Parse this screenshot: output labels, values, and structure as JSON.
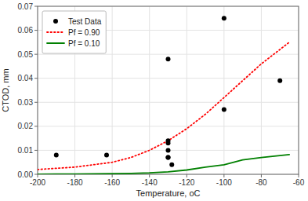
{
  "chart_data": {
    "type": "scatter",
    "xlabel": "Temperature, oC",
    "ylabel": "CTOD, mm",
    "xlim": [
      -200,
      -60
    ],
    "ylim": [
      0,
      0.07
    ],
    "xticks": [
      -200,
      -180,
      -160,
      -140,
      -120,
      -100,
      -80,
      -60
    ],
    "yticks": [
      {
        "value": 0,
        "label": "0.00"
      },
      0.01,
      0.02,
      0.03,
      0.04,
      0.05,
      0.06,
      0.07
    ],
    "grid": true,
    "legend": "upper-left",
    "series": [
      {
        "name": "Test Data",
        "type": "scatter",
        "color": "black",
        "marker": "circle",
        "x": [
          -190,
          -163,
          -130,
          -130,
          -130,
          -130,
          -130,
          -130,
          -128,
          -100,
          -100,
          -70
        ],
        "values": [
          0.008,
          0.008,
          0.048,
          0.014,
          0.013,
          0.01,
          0.007,
          0.007,
          0.004,
          0.065,
          0.027,
          0.039
        ]
      },
      {
        "name": "Pf = 0.90",
        "type": "line",
        "color": "red",
        "line_style": "dotted",
        "x": [
          -200,
          -190,
          -180,
          -170,
          -160,
          -150,
          -140,
          -130,
          -120,
          -110,
          -100,
          -90,
          -80,
          -70,
          -65
        ],
        "values": [
          0.002,
          0.0025,
          0.003,
          0.004,
          0.005,
          0.007,
          0.01,
          0.014,
          0.019,
          0.025,
          0.032,
          0.039,
          0.046,
          0.052,
          0.055
        ]
      },
      {
        "name": "Pf = 0.10",
        "type": "line",
        "color": "green",
        "line_style": "solid",
        "x": [
          -200,
          -190,
          -180,
          -170,
          -160,
          -150,
          -140,
          -130,
          -120,
          -110,
          -100,
          -90,
          -80,
          -70,
          -65
        ],
        "values": [
          5e-05,
          0.0001,
          0.00015,
          0.0002,
          0.0003,
          0.0004,
          0.0006,
          0.001,
          0.0018,
          0.003,
          0.004,
          0.006,
          0.007,
          0.0078,
          0.0082
        ]
      }
    ]
  }
}
